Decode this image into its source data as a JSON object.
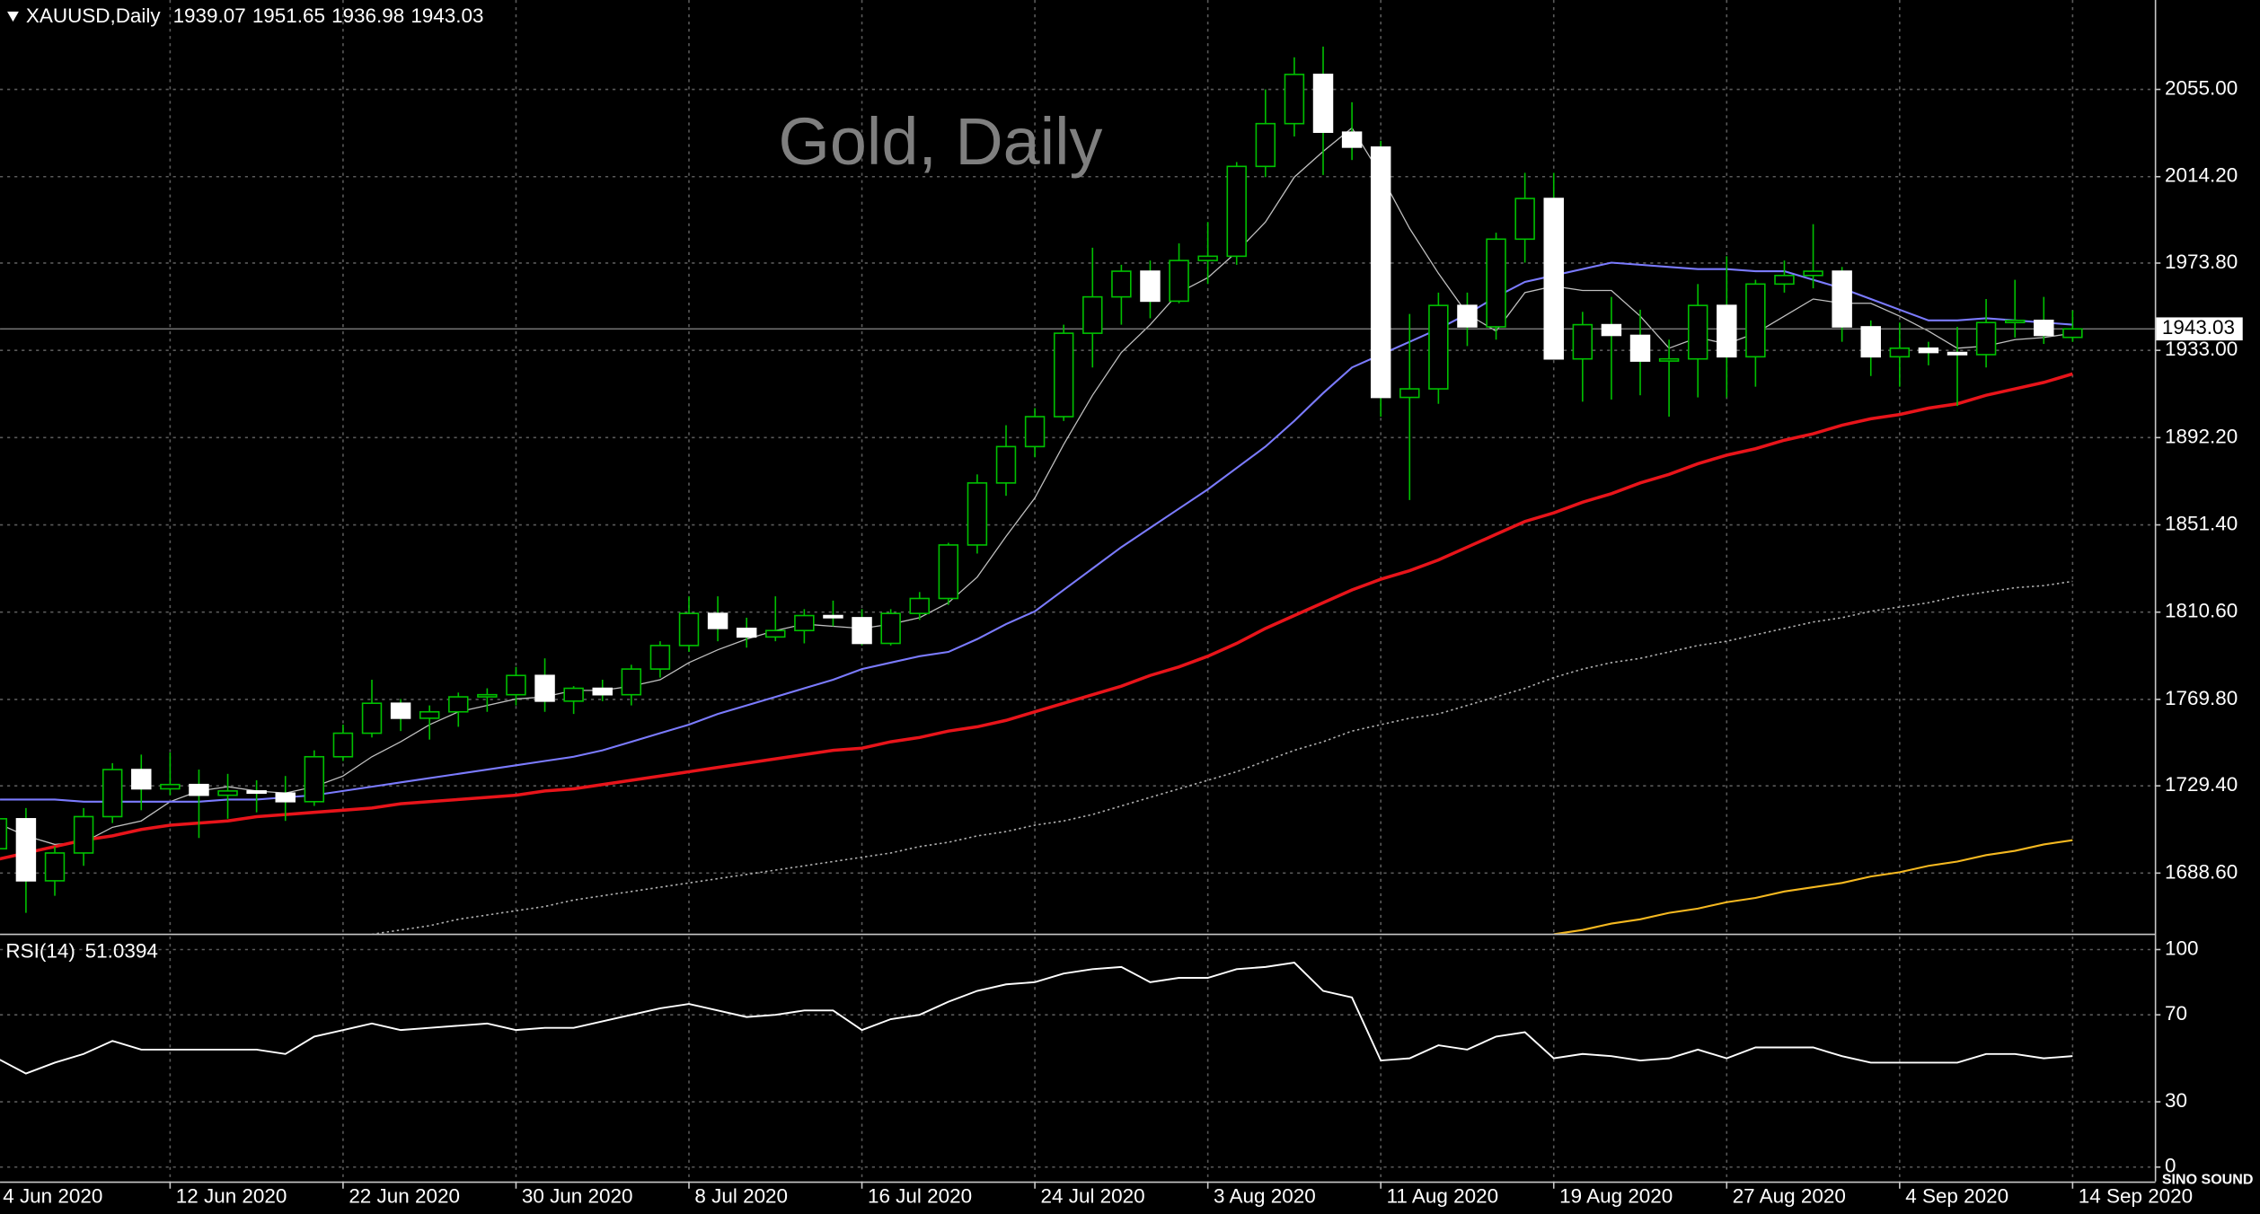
{
  "chart_data": [
    {
      "type": "candlestick",
      "symbol": "XAUUSD,Daily",
      "title": "Gold, Daily",
      "categories": [
        "4 Jun 2020",
        null,
        null,
        null,
        null,
        null,
        "12 Jun 2020",
        null,
        null,
        null,
        null,
        null,
        "22 Jun 2020",
        null,
        null,
        null,
        null,
        null,
        "30 Jun 2020",
        null,
        null,
        null,
        null,
        null,
        "8 Jul 2020",
        null,
        null,
        null,
        null,
        null,
        "16 Jul 2020",
        null,
        null,
        null,
        null,
        null,
        "24 Jul 2020",
        null,
        null,
        null,
        null,
        null,
        "3 Aug 2020",
        null,
        null,
        null,
        null,
        null,
        "11 Aug 2020",
        null,
        null,
        null,
        null,
        null,
        "19 Aug 2020",
        null,
        null,
        null,
        null,
        null,
        "27 Aug 2020",
        null,
        null,
        null,
        null,
        null,
        "4 Sep 2020",
        null,
        null,
        null,
        null,
        null,
        "14 Sep 2020"
      ],
      "open": [
        1700,
        1714,
        1685,
        1698,
        1715,
        1737,
        1728,
        1730,
        1725,
        1727,
        1726,
        1722,
        1743,
        1754,
        1768,
        1761,
        1764,
        1771,
        1772,
        1781,
        1769,
        1775,
        1772,
        1784,
        1795,
        1810,
        1803,
        1799,
        1802,
        1809,
        1808,
        1796,
        1810,
        1817,
        1842,
        1871,
        1888,
        1902,
        1941,
        1958,
        1970,
        1956,
        1975,
        1977,
        2019,
        2039,
        2062,
        2035,
        2028,
        1911,
        1915,
        1954,
        1944,
        1985,
        2004,
        1929,
        1945,
        1940,
        1928,
        1929,
        1954,
        1930,
        1964,
        1968,
        1970,
        1944,
        1930,
        1934,
        1932,
        1931,
        1946,
        1947,
        1939.07
      ],
      "high": [
        1728,
        1719,
        1701,
        1719,
        1740,
        1744,
        1745,
        1737,
        1735,
        1732,
        1734,
        1746,
        1758,
        1779,
        1770,
        1767,
        1773,
        1775,
        1785,
        1789,
        1776,
        1779,
        1786,
        1797,
        1818,
        1818,
        1808,
        1818,
        1812,
        1816,
        1812,
        1812,
        1820,
        1843,
        1875,
        1898,
        1906,
        1945,
        1981,
        1973,
        1975,
        1983,
        1993,
        2021,
        2055,
        2070,
        2075,
        2049,
        2031,
        1950,
        1960,
        1960,
        1988,
        2016,
        2016,
        1951,
        1958,
        1952,
        1938,
        1964,
        1977,
        1966,
        1975,
        1992,
        1972,
        1947,
        1946,
        1937,
        1944,
        1957,
        1966,
        1958,
        1951.65
      ],
      "low": [
        1697,
        1670,
        1678,
        1692,
        1712,
        1718,
        1725,
        1705,
        1714,
        1717,
        1713,
        1720,
        1741,
        1752,
        1755,
        1751,
        1757,
        1764,
        1767,
        1764,
        1763,
        1769,
        1767,
        1780,
        1792,
        1797,
        1794,
        1797,
        1796,
        1804,
        1795,
        1795,
        1807,
        1814,
        1838,
        1865,
        1883,
        1900,
        1925,
        1945,
        1948,
        1955,
        1964,
        1973,
        2014,
        2033,
        2015,
        2022,
        1902,
        1863,
        1908,
        1935,
        1938,
        1974,
        1930,
        1909,
        1910,
        1912,
        1902,
        1911,
        1911,
        1916,
        1960,
        1962,
        1937,
        1921,
        1916,
        1926,
        1907,
        1925,
        1939,
        1936,
        1936.98
      ],
      "close": [
        1714,
        1685,
        1698,
        1715,
        1737,
        1728,
        1730,
        1725,
        1727,
        1726,
        1722,
        1743,
        1754,
        1768,
        1761,
        1764,
        1771,
        1772,
        1781,
        1769,
        1775,
        1772,
        1784,
        1795,
        1810,
        1803,
        1799,
        1802,
        1809,
        1808,
        1796,
        1810,
        1817,
        1842,
        1871,
        1888,
        1902,
        1941,
        1958,
        1970,
        1956,
        1975,
        1977,
        2019,
        2039,
        2062,
        2035,
        2028,
        1911,
        1915,
        1954,
        1944,
        1985,
        2004,
        1929,
        1945,
        1940,
        1928,
        1929,
        1954,
        1930,
        1964,
        1968,
        1970,
        1944,
        1930,
        1934,
        1932,
        1931,
        1946,
        1947,
        1940,
        1943.03
      ],
      "up_color": "#00c000",
      "down_color": "#ffffff",
      "series": [
        {
          "color": "#c0c0c0",
          "line_style": "solid",
          "values": [
            1712,
            1706,
            1702,
            1703,
            1710,
            1713,
            1722,
            1727,
            1729,
            1727,
            1726,
            1729,
            1734,
            1743,
            1750,
            1758,
            1764,
            1767,
            1770,
            1771,
            1774,
            1774,
            1776,
            1779,
            1787,
            1793,
            1798,
            1802,
            1805,
            1804,
            1803,
            1805,
            1808,
            1815,
            1827,
            1846,
            1864,
            1889,
            1912,
            1932,
            1945,
            1960,
            1967,
            1979,
            1993,
            2014,
            2026,
            2037,
            2015,
            1990,
            1969,
            1950,
            1942,
            1960,
            1963,
            1961,
            1961,
            1949,
            1934,
            1939,
            1936,
            1941,
            1949,
            1957,
            1955,
            1955,
            1949,
            1942,
            1934,
            1935,
            1938,
            1939,
            1941
          ]
        },
        {
          "color": "#7b7bff",
          "line_style": "solid",
          "values": [
            1723,
            1723,
            1723,
            1722,
            1722,
            1722,
            1722,
            1722,
            1723,
            1723,
            1724,
            1725,
            1727,
            1729,
            1731,
            1733,
            1735,
            1737,
            1739,
            1741,
            1743,
            1746,
            1750,
            1754,
            1758,
            1763,
            1767,
            1771,
            1775,
            1779,
            1784,
            1787,
            1790,
            1792,
            1798,
            1805,
            1811,
            1821,
            1831,
            1841,
            1850,
            1859,
            1868,
            1878,
            1888,
            1900,
            1913,
            1925,
            1931,
            1937,
            1943,
            1950,
            1958,
            1965,
            1968,
            1971,
            1974,
            1973,
            1972,
            1971,
            1971,
            1970,
            1970,
            1966,
            1962,
            1957,
            1952,
            1947,
            1947,
            1948,
            1947,
            1946,
            1945
          ]
        },
        {
          "color": "#e8141a",
          "line_style": "solid",
          "values": [
            1695,
            1698,
            1701,
            1704,
            1706,
            1709,
            1711,
            1712,
            1713,
            1715,
            1716,
            1717,
            1718,
            1719,
            1721,
            1722,
            1723,
            1724,
            1725,
            1727,
            1728,
            1730,
            1732,
            1734,
            1736,
            1738,
            1740,
            1742,
            1744,
            1746,
            1747,
            1750,
            1752,
            1755,
            1757,
            1760,
            1764,
            1768,
            1772,
            1776,
            1781,
            1785,
            1790,
            1796,
            1803,
            1809,
            1815,
            1821,
            1826,
            1830,
            1835,
            1841,
            1847,
            1853,
            1857,
            1862,
            1866,
            1871,
            1875,
            1880,
            1884,
            1887,
            1891,
            1894,
            1898,
            1901,
            1903,
            1906,
            1908,
            1912,
            1915,
            1918,
            1922
          ]
        },
        {
          "color": "#b0b0b0",
          "line_style": "dotted",
          "values": [
            null,
            null,
            null,
            null,
            null,
            null,
            null,
            null,
            null,
            null,
            null,
            null,
            null,
            1660,
            1662,
            1664,
            1667,
            1669,
            1671,
            1673,
            1676,
            1678,
            1680,
            1682,
            1684,
            1686,
            1688,
            1690,
            1692,
            1694,
            1696,
            1698,
            1701,
            1703,
            1706,
            1708,
            1711,
            1713,
            1716,
            1720,
            1724,
            1728,
            1732,
            1736,
            1741,
            1746,
            1750,
            1755,
            1758,
            1761,
            1763,
            1767,
            1771,
            1775,
            1780,
            1784,
            1787,
            1789,
            1792,
            1795,
            1797,
            1800,
            1803,
            1806,
            1808,
            1811,
            1813,
            1815,
            1818,
            1820,
            1822,
            1823,
            1825
          ]
        },
        {
          "color": "#f5b820",
          "line_style": "solid",
          "values": [
            null,
            null,
            null,
            null,
            null,
            null,
            null,
            null,
            null,
            null,
            null,
            null,
            null,
            null,
            null,
            null,
            null,
            null,
            null,
            null,
            null,
            null,
            null,
            null,
            null,
            null,
            null,
            null,
            null,
            null,
            null,
            null,
            null,
            null,
            null,
            null,
            null,
            null,
            null,
            null,
            null,
            null,
            null,
            null,
            null,
            null,
            null,
            null,
            null,
            null,
            null,
            null,
            null,
            null,
            1660,
            1662,
            1665,
            1667,
            1670,
            1672,
            1675,
            1677,
            1680,
            1682,
            1684,
            1687,
            1689,
            1692,
            1694,
            1697,
            1699,
            1702,
            1704
          ]
        }
      ],
      "ylim": [
        1660.3,
        2096.8
      ],
      "yticks": [
        {
          "value": 2055,
          "label": "2055.00"
        },
        {
          "value": 2014.2,
          "label": "2014.20"
        },
        {
          "value": 1973.8,
          "label": "1973.80"
        },
        {
          "value": 1933,
          "label": "1933.00"
        },
        {
          "value": 1892.2,
          "label": "1892.20"
        },
        {
          "value": 1851.4,
          "label": "1851.40"
        },
        {
          "value": 1810.6,
          "label": "1810.60"
        },
        {
          "value": 1769.8,
          "label": "1769.80"
        },
        {
          "value": 1729.4,
          "label": "1729.40"
        },
        {
          "value": 1688.6,
          "label": "1688.60"
        }
      ],
      "grid": true
    },
    {
      "type": "line",
      "title": "RSI(14)",
      "color": "#ffffff",
      "values": [
        50,
        43,
        48,
        52,
        58,
        54,
        54,
        54,
        54,
        54,
        52,
        60,
        63,
        66,
        63,
        64,
        65,
        66,
        63,
        64,
        64,
        67,
        70,
        73,
        75,
        72,
        69,
        70,
        72,
        72,
        63,
        68,
        70,
        76,
        81,
        84,
        85,
        89,
        91,
        92,
        85,
        87,
        87,
        91,
        92,
        94,
        81,
        78,
        49,
        50,
        56,
        54,
        60,
        62,
        50,
        52,
        51,
        49,
        50,
        54,
        50,
        55,
        55,
        55,
        51,
        48,
        48,
        48,
        48,
        52,
        52,
        50,
        51.0394
      ],
      "ylim": [
        -6.6,
        106
      ],
      "yticks": [
        100,
        70,
        30,
        0
      ],
      "grid": true
    }
  ],
  "watermark": "SINO SOUND"
}
